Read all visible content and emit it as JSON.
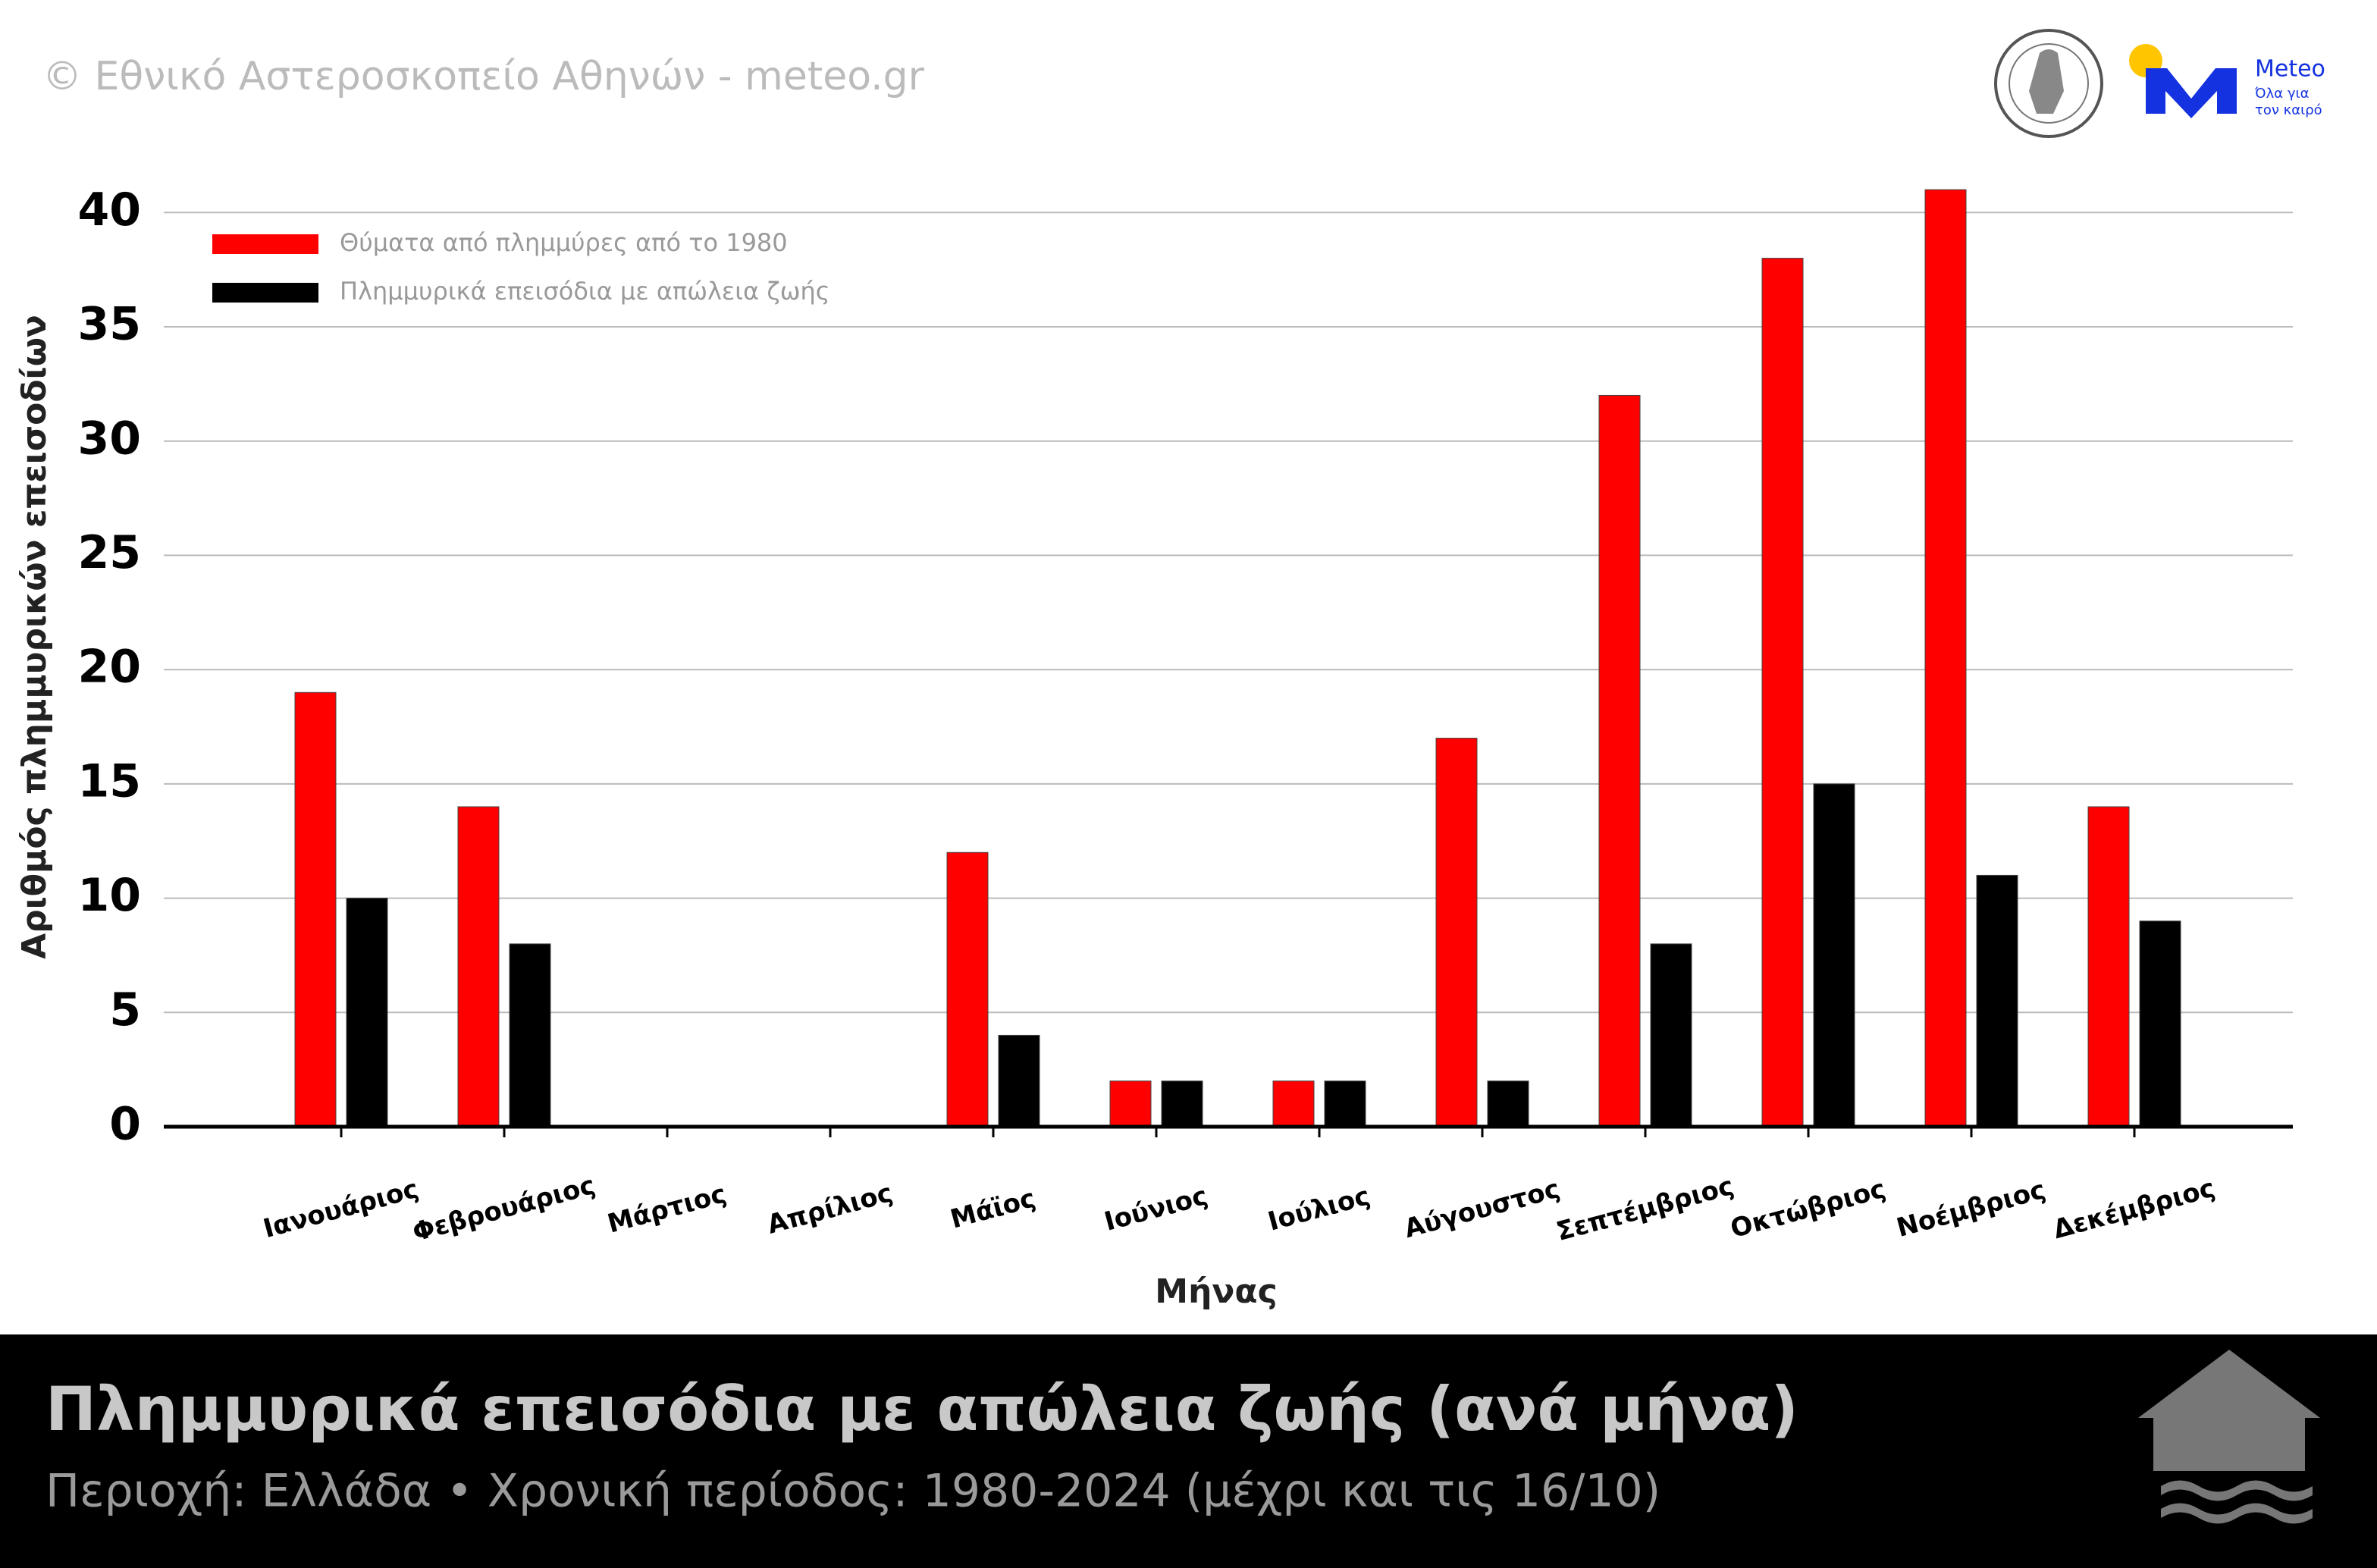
{
  "copyright": "© Εθνικό Αστεροσκοπείο Αθηνών - meteo.gr",
  "logo": {
    "name": "Meteo",
    "tagline": [
      "Όλα για",
      "τον καιρό"
    ]
  },
  "chart_data": {
    "type": "bar",
    "title": "Πλημμυρικά επεισόδια με απώλεια ζωής (ανά μήνα)",
    "subtitle": "Περιοχή: Ελλάδα • Χρονική περίοδος: 1980-2024 (μέχρι και τις 16/10)",
    "x_label": "Μήνας",
    "y_label": "Αριθμός πλημμυρικών επεισοδίων",
    "categories": [
      "Ιανουάριος",
      "Φεβρουάριος",
      "Μάρτιος",
      "Απρίλιος",
      "Μάϊος",
      "Ιούνιος",
      "Ιούλιος",
      "Αύγουστος",
      "Σεπτέμβριος",
      "Οκτώβριος",
      "Νοέμβριος",
      "Δεκέμβριος"
    ],
    "series": [
      {
        "name": "Θύματα από πλημμύρες από το 1980",
        "color": "#ff0000",
        "values": [
          19,
          14,
          0,
          0,
          12,
          2,
          2,
          17,
          32,
          38,
          41,
          14
        ]
      },
      {
        "name": "Πλημμυρικά επεισόδια με απώλεια ζωής",
        "color": "#000000",
        "values": [
          10,
          8,
          0,
          0,
          4,
          2,
          2,
          2,
          8,
          15,
          11,
          9
        ]
      }
    ],
    "ylim": [
      0,
      42
    ],
    "yticks": [
      0,
      5,
      10,
      15,
      20,
      25,
      30,
      35,
      40
    ],
    "grid": true,
    "legend": "top-left"
  }
}
